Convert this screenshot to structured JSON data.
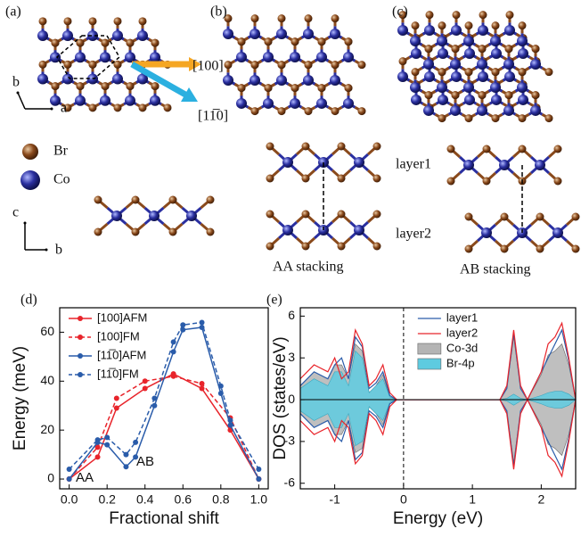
{
  "structure": {
    "panel_labels": [
      "(a)",
      "(b)",
      "(c)"
    ],
    "top_axes": {
      "y": "b",
      "x": "a"
    },
    "directions": [
      "[100]",
      "[11̅0]"
    ],
    "atoms": [
      "Br",
      "Co"
    ],
    "side_axes": {
      "y": "c",
      "x": "b"
    },
    "layers": [
      "layer1",
      "layer2"
    ],
    "stackings": [
      "AA stacking",
      "AB stacking"
    ]
  },
  "chart_data": [
    {
      "type": "line",
      "panel_label": "(d)",
      "xlabel": "Fractional shift",
      "ylabel": "Energy (meV)",
      "xlim": [
        -0.05,
        1.05
      ],
      "ylim": [
        -4,
        70
      ],
      "xticks": [
        {
          "value": 0,
          "label": "0.0"
        },
        {
          "value": 0.2,
          "label": "0.2"
        },
        {
          "value": 0.4,
          "label": "0.4"
        },
        {
          "value": 0.6,
          "label": "0.6"
        },
        {
          "value": 0.8,
          "label": "0.8"
        },
        {
          "value": 1,
          "label": "1.0"
        }
      ],
      "yticks": [
        0,
        20,
        40,
        60
      ],
      "annotations": [
        "AA",
        "AB"
      ],
      "series": [
        {
          "name": "[100]AFM",
          "color": "#e8242b",
          "style": "solid",
          "x": [
            0,
            0.15,
            0.25,
            0.4,
            0.55,
            0.7,
            0.85,
            1.0
          ],
          "values": [
            0,
            9,
            29,
            37,
            43,
            37,
            20,
            0
          ]
        },
        {
          "name": "[100]FM",
          "color": "#e8242b",
          "style": "dashed",
          "x": [
            0,
            0.15,
            0.25,
            0.4,
            0.55,
            0.7,
            0.85,
            1.0
          ],
          "values": [
            0,
            13,
            33,
            40,
            42,
            39,
            25,
            0
          ]
        },
        {
          "name": "[11̅0]AFM",
          "color": "#2a5caa",
          "style": "solid",
          "x": [
            0,
            0.15,
            0.2,
            0.3,
            0.35,
            0.45,
            0.55,
            0.6,
            0.7,
            0.8,
            0.85,
            1.0
          ],
          "values": [
            0,
            15,
            14,
            5,
            9,
            30,
            52,
            61,
            62,
            35,
            22,
            0
          ]
        },
        {
          "name": "[11̅0]FM",
          "color": "#2a5caa",
          "style": "dashed",
          "x": [
            0,
            0.15,
            0.2,
            0.3,
            0.35,
            0.45,
            0.55,
            0.6,
            0.7,
            0.8,
            0.85,
            1.0
          ],
          "values": [
            4,
            16,
            17,
            10,
            15,
            33,
            56,
            63,
            64,
            38,
            24,
            4
          ]
        }
      ]
    },
    {
      "type": "area",
      "panel_label": "(e)",
      "xlabel": "Energy (eV)",
      "ylabel": "DOS (states/eV)",
      "xlim": [
        -1.5,
        2.5
      ],
      "ylim": [
        -6.4,
        6.6
      ],
      "xticks": [
        -1,
        0,
        1,
        2
      ],
      "yticks": [
        -6,
        -3,
        0,
        3,
        6
      ],
      "x": [
        -1.5,
        -1.3,
        -1.1,
        -1.0,
        -0.9,
        -0.8,
        -0.7,
        -0.6,
        -0.5,
        -0.4,
        -0.3,
        -0.2,
        -0.1,
        0,
        1.4,
        1.5,
        1.6,
        1.7,
        1.8,
        2.0,
        2.1,
        2.2,
        2.3,
        2.4,
        2.5
      ],
      "series": [
        {
          "name": "Co-3d",
          "color": "#b4b4b4",
          "style": "fill",
          "values": [
            1,
            2,
            1.5,
            2.5,
            2.5,
            1.5,
            4,
            3.5,
            0.5,
            1,
            1.8,
            0.2,
            0,
            0,
            0,
            0.8,
            4.5,
            0.8,
            0,
            1.8,
            3.2,
            3.5,
            4,
            2.5,
            0
          ],
          "values_down": [
            -1,
            -2,
            -1.5,
            -2.5,
            -2.5,
            -1.5,
            -3.8,
            -3.5,
            -0.5,
            -1,
            -1.8,
            -0.2,
            0,
            0,
            0,
            -0.8,
            -4.5,
            -0.8,
            0,
            -1.8,
            -3.2,
            -3.5,
            -4,
            -2.5,
            0
          ]
        },
        {
          "name": "Br-4p",
          "color": "#5ecbe0",
          "style": "fill",
          "values": [
            0.8,
            1.5,
            1,
            2,
            2,
            1,
            3.5,
            3,
            0.5,
            1,
            1.5,
            0.2,
            0,
            0,
            0,
            0.1,
            0.4,
            0.1,
            0,
            0.3,
            0.5,
            0.6,
            0.6,
            0.4,
            0
          ],
          "values_down": [
            -0.8,
            -1.5,
            -1,
            -2,
            -2,
            -1,
            -3.3,
            -3,
            -0.5,
            -1,
            -1.5,
            -0.2,
            0,
            0,
            0,
            -0.1,
            -0.4,
            -0.1,
            0,
            -0.3,
            -0.5,
            -0.6,
            -0.6,
            -0.4,
            0
          ]
        },
        {
          "name": "layer1",
          "color": "#2a5caa",
          "style": "line",
          "values": [
            1,
            2,
            1.5,
            2.5,
            3,
            1.5,
            4.5,
            3.8,
            0.8,
            1.2,
            2,
            0.3,
            0,
            0,
            0,
            0.8,
            4.8,
            0.8,
            0,
            2,
            3,
            4,
            5,
            2.8,
            0
          ],
          "values_down": [
            -1,
            -2,
            -1.5,
            -2.5,
            -3,
            -1.5,
            -4.3,
            -3.8,
            -0.8,
            -1.2,
            -2,
            -0.3,
            0,
            0,
            0,
            -0.8,
            -4.8,
            -0.8,
            0,
            -2,
            -3,
            -4,
            -5,
            -2.8,
            0
          ]
        },
        {
          "name": "layer2",
          "color": "#e8242b",
          "style": "line",
          "values": [
            1.5,
            2.5,
            2,
            3,
            1.5,
            2,
            5,
            4,
            1,
            1.5,
            2.5,
            0.5,
            0,
            0,
            0,
            1,
            5,
            1,
            0,
            2,
            4,
            4.5,
            5.5,
            3,
            0
          ],
          "values_down": [
            -1.5,
            -2.5,
            -2,
            -3,
            -1.5,
            -2,
            -4.6,
            -4,
            -1,
            -1.5,
            -2.5,
            -0.5,
            0,
            0,
            0,
            -1,
            -5,
            -1,
            0,
            -2,
            -4,
            -4.5,
            -5.5,
            -3,
            0
          ]
        }
      ]
    }
  ]
}
